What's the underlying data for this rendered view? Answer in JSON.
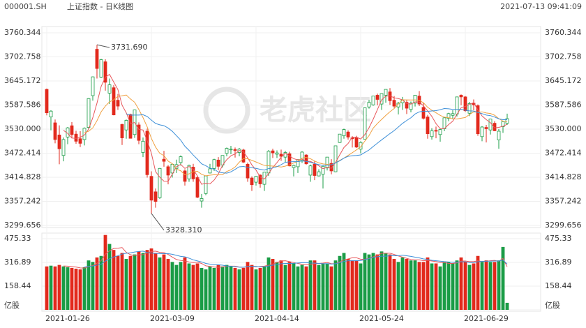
{
  "chart_data": {
    "type": "candlestick",
    "symbol": "000001.SH",
    "title": "上证指数 - 日K线图",
    "timestamp": "2021-07-13 09:41:09",
    "watermark": "老虎社区",
    "up_color": "#1a9c46",
    "down_color": "#e2291c",
    "grid": true,
    "categories": [
      "2021-01-26",
      null,
      null,
      null,
      null,
      null,
      null,
      null,
      null,
      null,
      null,
      null,
      null,
      null,
      null,
      null,
      null,
      null,
      null,
      null,
      null,
      null,
      null,
      null,
      null,
      "2021-03-09",
      null,
      null,
      null,
      null,
      null,
      null,
      null,
      null,
      null,
      null,
      null,
      null,
      null,
      null,
      null,
      null,
      null,
      null,
      null,
      null,
      null,
      null,
      null,
      null,
      "2021-04-14",
      null,
      null,
      null,
      null,
      null,
      null,
      null,
      null,
      null,
      null,
      null,
      null,
      null,
      null,
      null,
      null,
      null,
      null,
      null,
      null,
      null,
      null,
      null,
      null,
      "2021-05-24",
      null,
      null,
      null,
      null,
      null,
      null,
      null,
      null,
      null,
      null,
      null,
      null,
      null,
      null,
      null,
      null,
      null,
      null,
      null,
      null,
      null,
      null,
      null,
      null,
      "2021-06-29",
      null,
      null,
      null,
      null,
      null,
      null,
      null,
      null,
      null,
      null
    ],
    "open": [
      3625,
      3559,
      3545,
      3516,
      3467,
      3511,
      3538,
      3518,
      3507,
      3505,
      3534,
      3610,
      3721,
      3654,
      3691,
      3616,
      3629,
      3599,
      3541,
      3528,
      3565,
      3517,
      3540,
      3474,
      3525,
      3417,
      3380,
      3366,
      3458,
      3440,
      3425,
      3436,
      3450,
      3430,
      3411,
      3439,
      3414,
      3358,
      3376,
      3425,
      3436,
      3456,
      3444,
      3472,
      3481,
      3481,
      3474,
      3480,
      3446,
      3413,
      3403,
      3420,
      3398,
      3425,
      3478,
      3470,
      3470,
      3463,
      3471,
      3438,
      3440,
      3455,
      3468,
      3420,
      3446,
      3418,
      3422,
      3437,
      3448,
      3428,
      3498,
      3514,
      3523,
      3509,
      3510,
      3482,
      3506,
      3583,
      3588,
      3611,
      3590,
      3611,
      3619,
      3599,
      3583,
      3593,
      3594,
      3577,
      3592,
      3609,
      3582,
      3559,
      3512,
      3527,
      3517,
      3531,
      3556,
      3563,
      3566,
      3611,
      3607,
      3568,
      3592,
      3586,
      3512,
      3534,
      3528,
      3544,
      3504,
      3536,
      3544
    ],
    "high": [
      3627,
      3575,
      3553,
      3539,
      3510,
      3535,
      3547,
      3526,
      3525,
      3534,
      3604,
      3656,
      3731.69,
      3698,
      3697,
      3651,
      3635,
      3614,
      3543,
      3553,
      3567,
      3577,
      3546,
      3510,
      3531,
      3429,
      3388,
      3437,
      3478,
      3444,
      3447,
      3457,
      3467,
      3434,
      3445,
      3447,
      3418,
      3375,
      3419,
      3447,
      3459,
      3463,
      3467,
      3486,
      3490,
      3486,
      3485,
      3483,
      3450,
      3417,
      3418,
      3422,
      3428,
      3480,
      3483,
      3479,
      3481,
      3478,
      3476,
      3445,
      3458,
      3477,
      3470,
      3445,
      3454,
      3434,
      3442,
      3462,
      3458,
      3490,
      3518,
      3531,
      3527,
      3513,
      3514,
      3501,
      3582,
      3600,
      3609,
      3615,
      3616,
      3625,
      3628,
      3609,
      3595,
      3607,
      3599,
      3596,
      3611,
      3621,
      3593,
      3564,
      3532,
      3536,
      3531,
      3558,
      3569,
      3575,
      3607,
      3613,
      3609,
      3595,
      3601,
      3589,
      3537,
      3540,
      3555,
      3549,
      3530,
      3549,
      3567
    ],
    "low": [
      3563,
      3527,
      3496,
      3446,
      3453,
      3494,
      3508,
      3495,
      3487,
      3491,
      3530,
      3598,
      3651,
      3652,
      3622,
      3590,
      3563,
      3576,
      3492,
      3507,
      3508,
      3509,
      3494,
      3463,
      3414,
      3328.31,
      3342,
      3363,
      3440,
      3398,
      3414,
      3425,
      3443,
      3395,
      3404,
      3404,
      3365,
      3342,
      3372,
      3424,
      3430,
      3432,
      3438,
      3465,
      3470,
      3462,
      3465,
      3449,
      3404,
      3382,
      3395,
      3390,
      3382,
      3418,
      3461,
      3461,
      3454,
      3450,
      3441,
      3417,
      3425,
      3449,
      3445,
      3404,
      3408,
      3417,
      3388,
      3431,
      3422,
      3427,
      3497,
      3507,
      3505,
      3486,
      3485,
      3472,
      3506,
      3579,
      3586,
      3587,
      3576,
      3593,
      3588,
      3581,
      3565,
      3576,
      3566,
      3570,
      3584,
      3585,
      3553,
      3507,
      3505,
      3508,
      3500,
      3525,
      3549,
      3554,
      3560,
      3587,
      3571,
      3561,
      3575,
      3514,
      3501,
      3498,
      3517,
      3525,
      3483,
      3521,
      3540
    ],
    "close": [
      3569,
      3573,
      3505,
      3483,
      3505,
      3533,
      3517,
      3501,
      3496,
      3532,
      3603,
      3655,
      3675,
      3696,
      3642,
      3636,
      3564,
      3585,
      3509,
      3551,
      3508,
      3576,
      3503,
      3501,
      3421,
      3360,
      3357,
      3436,
      3453,
      3420,
      3446,
      3445,
      3464,
      3405,
      3443,
      3411,
      3367,
      3364,
      3418,
      3435,
      3457,
      3441,
      3467,
      3484,
      3482,
      3479,
      3482,
      3451,
      3413,
      3397,
      3417,
      3399,
      3427,
      3477,
      3473,
      3473,
      3465,
      3474,
      3442,
      3443,
      3457,
      3475,
      3447,
      3442,
      3419,
      3428,
      3441,
      3463,
      3430,
      3490,
      3518,
      3529,
      3511,
      3507,
      3487,
      3498,
      3581,
      3594,
      3609,
      3601,
      3615,
      3625,
      3598,
      3585,
      3592,
      3600,
      3580,
      3592,
      3611,
      3590,
      3556,
      3519,
      3526,
      3525,
      3529,
      3557,
      3567,
      3567,
      3607,
      3607,
      3574,
      3591,
      3588,
      3519,
      3535,
      3531,
      3554,
      3526,
      3525,
      3548,
      3555
    ],
    "volume": [
      290,
      295,
      290,
      300,
      290,
      285,
      280,
      275,
      270,
      285,
      330,
      320,
      350,
      360,
      500,
      440,
      400,
      360,
      380,
      340,
      360,
      370,
      390,
      380,
      400,
      410,
      380,
      350,
      370,
      340,
      320,
      300,
      320,
      350,
      310,
      300,
      310,
      280,
      270,
      290,
      280,
      300,
      290,
      300,
      290,
      280,
      270,
      280,
      320,
      300,
      270,
      280,
      290,
      350,
      340,
      320,
      330,
      300,
      320,
      310,
      290,
      300,
      290,
      330,
      330,
      300,
      310,
      310,
      290,
      330,
      360,
      380,
      340,
      330,
      330,
      310,
      380,
      370,
      380,
      370,
      390,
      380,
      370,
      340,
      320,
      350,
      340,
      330,
      330,
      320,
      320,
      350,
      310,
      310,
      290,
      320,
      320,
      310,
      330,
      350,
      320,
      300,
      310,
      360,
      320,
      330,
      320,
      320,
      330,
      420,
      47
    ],
    "ylim": [
      3299.656,
      3760.344
    ],
    "yticks": [
      3760.344,
      3702.758,
      3645.172,
      3587.586,
      {
        "value": 3530,
        "label": "3530.000"
      },
      3472.414,
      3414.828,
      3357.242,
      3299.656
    ],
    "volume_lim": [
      0,
      475.33
    ],
    "volume_ticks": [
      475.33,
      316.89,
      158.44,
      {
        "value": 0,
        "label": "亿股"
      }
    ],
    "annotations": [
      {
        "label": "3731.690",
        "value": 3731.69
      },
      {
        "label": "3328.310",
        "value": 3328.31
      }
    ],
    "ma": [
      {
        "period": 5,
        "color": "#e8565a"
      },
      {
        "period": 10,
        "color": "#f0a040"
      },
      {
        "period": 20,
        "color": "#3d8fd8"
      }
    ],
    "volume_ma": [
      {
        "period": 5,
        "color": "#e8565a"
      },
      {
        "period": 10,
        "color": "#3d8fd8"
      }
    ]
  }
}
